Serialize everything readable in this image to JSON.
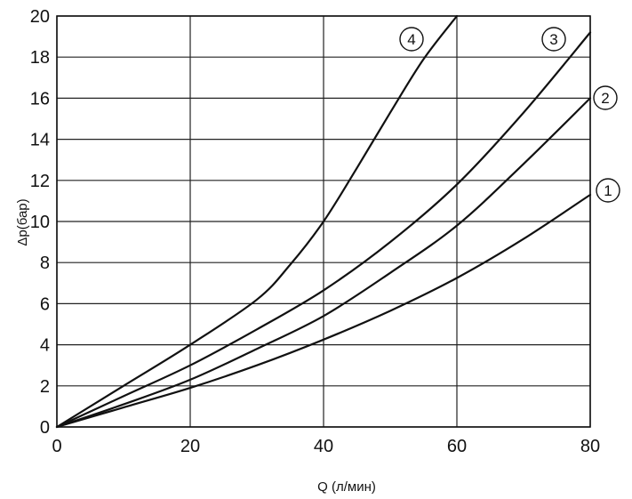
{
  "chart_data": {
    "type": "line",
    "xlabel": "Q (л/мин)",
    "ylabel": "Δp(бар)",
    "xlim": [
      0,
      80
    ],
    "ylim": [
      0,
      20
    ],
    "xticks": [
      "0",
      "20",
      "40",
      "60",
      "80"
    ],
    "yticks": [
      "0",
      "2",
      "4",
      "6",
      "8",
      "10",
      "12",
      "14",
      "16",
      "18",
      "20"
    ],
    "grid": true,
    "series": [
      {
        "name": "1",
        "x": [
          0,
          10,
          20,
          30,
          40,
          50,
          60,
          70,
          80
        ],
        "y": [
          0,
          0.95,
          1.9,
          3.0,
          4.25,
          5.65,
          7.25,
          9.15,
          11.3
        ]
      },
      {
        "name": "2",
        "x": [
          0,
          10,
          20,
          30,
          40,
          50,
          60,
          70,
          80
        ],
        "y": [
          0,
          1.1,
          2.3,
          3.8,
          5.4,
          7.5,
          9.8,
          12.8,
          16.0
        ]
      },
      {
        "name": "3",
        "x": [
          0,
          10,
          20,
          30,
          40,
          50,
          60,
          70,
          80
        ],
        "y": [
          0,
          1.5,
          3.0,
          4.75,
          6.65,
          9.0,
          11.8,
          15.3,
          19.2
        ]
      },
      {
        "name": "4",
        "x": [
          0,
          10,
          20,
          30,
          35,
          40,
          45,
          50,
          55,
          60
        ],
        "y": [
          0,
          2.0,
          4.0,
          6.2,
          7.9,
          10.0,
          12.6,
          15.3,
          17.9,
          20.0
        ]
      }
    ]
  }
}
